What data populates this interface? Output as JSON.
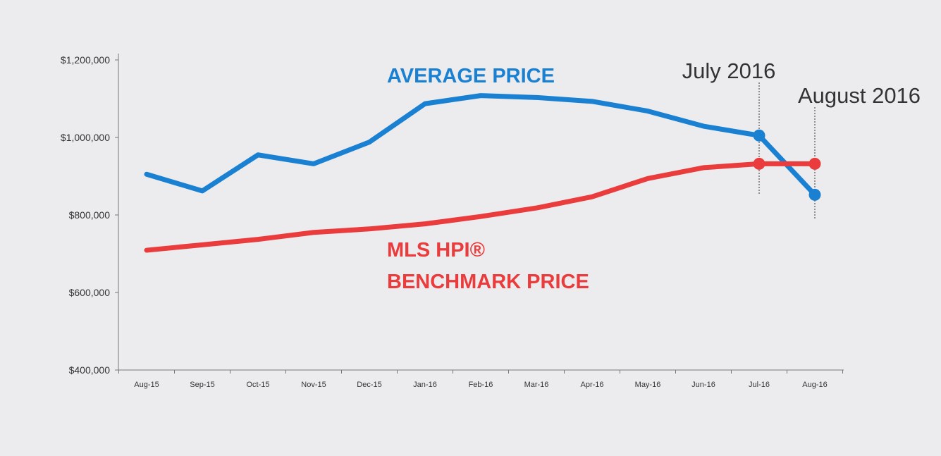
{
  "colors": {
    "average": "#1a80d2",
    "benchmark": "#ea3c3c",
    "axis": "#777777",
    "text": "#333333",
    "background": "#ececef"
  },
  "chart_data": {
    "type": "line",
    "categories": [
      "Aug-15",
      "Sep-15",
      "Oct-15",
      "Nov-15",
      "Dec-15",
      "Jan-16",
      "Feb-16",
      "Mar-16",
      "Apr-16",
      "May-16",
      "Jun-16",
      "Jul-16",
      "Aug-16"
    ],
    "series": [
      {
        "key": "average",
        "name_lines": [
          "AVERAGE PRICE"
        ],
        "color": "#1a80d2",
        "values": [
          905000,
          862000,
          955000,
          932000,
          988000,
          1087000,
          1108000,
          1103000,
          1093000,
          1068000,
          1029000,
          1005000,
          852000
        ]
      },
      {
        "key": "benchmark",
        "name_lines": [
          "MLS HPI®",
          "BENCHMARK PRICE"
        ],
        "color": "#ea3c3c",
        "values": [
          709000,
          723000,
          737000,
          755000,
          764000,
          777000,
          796000,
          818000,
          847000,
          894000,
          922000,
          932000,
          932000
        ]
      }
    ],
    "ylim": [
      400000,
      1200000
    ],
    "yticks": [
      400000,
      600000,
      800000,
      1000000,
      1200000
    ],
    "ytick_labels": [
      "$400,000",
      "$600,000",
      "$800,000",
      "$1,000,000",
      "$1,200,000"
    ],
    "markers": [
      {
        "series": "average",
        "index": 11
      },
      {
        "series": "average",
        "index": 12
      },
      {
        "series": "benchmark",
        "index": 11
      },
      {
        "series": "benchmark",
        "index": 12
      }
    ],
    "annotations": [
      {
        "text": "July 2016",
        "index": 11
      },
      {
        "text": "August 2016",
        "index": 12
      }
    ],
    "title": "",
    "xlabel": "",
    "ylabel": "",
    "grid": false
  }
}
